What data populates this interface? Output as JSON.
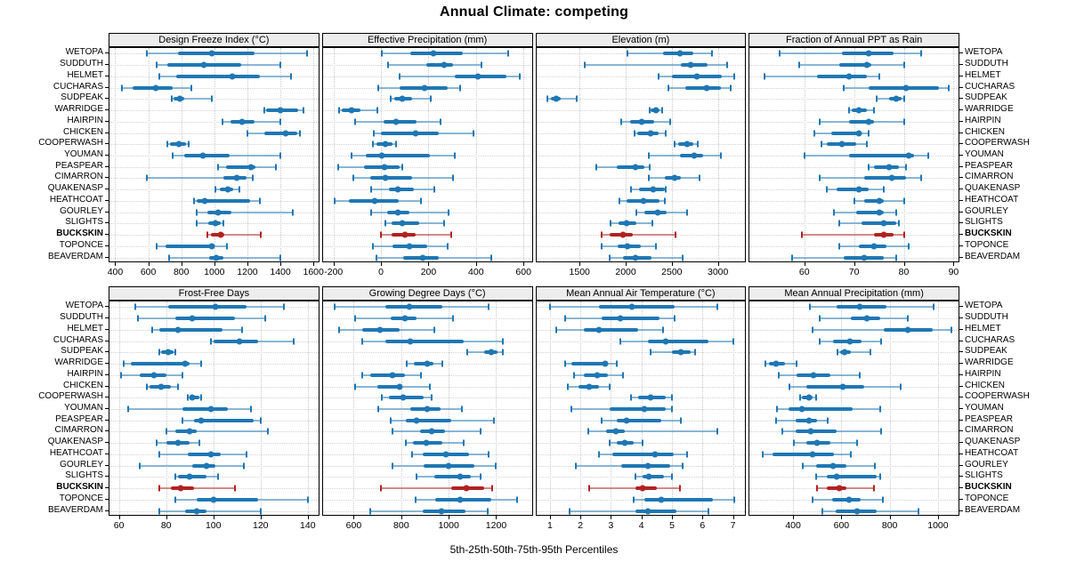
{
  "title": "Annual Climate: competing",
  "subtitle": "5th-25th-50th-75th-95th Percentiles",
  "highlight_station": "BUCKSKIN",
  "colors": {
    "series": "#1f77b4",
    "highlight": "#b22222",
    "strip_bg": "#ededed",
    "grid": "#c9c9c9",
    "border": "#000000"
  },
  "stations": [
    "WETOPA",
    "SUDDUTH",
    "HELMET",
    "CUCHARAS",
    "SUDPEAK",
    "WARRIDGE",
    "HAIRPIN",
    "CHICKEN",
    "COOPERWASH",
    "YOUMAN",
    "PEASPEAR",
    "CIMARRON",
    "QUAKENASP",
    "HEATHCOAT",
    "GOURLEY",
    "SLIGHTS",
    "BUCKSKIN",
    "TOPONCE",
    "BEAVERDAM"
  ],
  "percentile_labels": [
    "5th",
    "25th",
    "50th",
    "75th",
    "95th"
  ],
  "chart_data": {
    "type": "scatter",
    "subtype": "trellis-percentile-interval-dotplot",
    "layout": {
      "rows": 2,
      "cols": 4
    },
    "grid": true,
    "panels": [
      {
        "title": "Design Freeze Index (°C)",
        "xlim": [
          365,
          1630
        ],
        "ticks": [
          400,
          600,
          800,
          1000,
          1200,
          1400,
          1600
        ],
        "values": [
          [
            590,
            780,
            985,
            1245,
            1560
          ],
          [
            650,
            715,
            935,
            1160,
            1400
          ],
          [
            665,
            770,
            1110,
            1275,
            1465
          ],
          [
            440,
            505,
            645,
            745,
            860
          ],
          [
            740,
            755,
            790,
            820,
            985
          ],
          [
            1300,
            1315,
            1400,
            1510,
            1540
          ],
          [
            1050,
            1100,
            1170,
            1245,
            1400
          ],
          [
            1200,
            1305,
            1430,
            1500,
            1520
          ],
          [
            715,
            730,
            785,
            830,
            845
          ],
          [
            750,
            820,
            930,
            1090,
            1400
          ],
          [
            1025,
            1070,
            1220,
            1250,
            1370
          ],
          [
            590,
            1055,
            1135,
            1195,
            1230
          ],
          [
            1005,
            1035,
            1080,
            1115,
            1150
          ],
          [
            875,
            895,
            940,
            1215,
            1275
          ],
          [
            895,
            960,
            1020,
            1105,
            1475
          ],
          [
            895,
            965,
            1005,
            1040,
            1055
          ],
          [
            960,
            980,
            1040,
            1060,
            1280
          ],
          [
            650,
            705,
            985,
            1000,
            1075
          ],
          [
            725,
            970,
            1010,
            1055,
            1400
          ]
        ]
      },
      {
        "title": "Effective Precipitation (mm)",
        "xlim": [
          -245,
          635
        ],
        "ticks": [
          -200,
          0,
          200,
          400,
          600
        ],
        "values": [
          [
            5,
            125,
            220,
            345,
            535
          ],
          [
            30,
            190,
            265,
            305,
            425
          ],
          [
            80,
            310,
            410,
            530,
            585
          ],
          [
            -10,
            80,
            185,
            280,
            335
          ],
          [
            40,
            55,
            90,
            130,
            210
          ],
          [
            -175,
            -165,
            -125,
            -85,
            -15
          ],
          [
            -110,
            10,
            65,
            150,
            250
          ],
          [
            -30,
            0,
            145,
            245,
            390
          ],
          [
            -35,
            -18,
            18,
            48,
            65
          ],
          [
            -125,
            -65,
            5,
            205,
            310
          ],
          [
            -180,
            -70,
            15,
            80,
            90
          ],
          [
            -115,
            -45,
            20,
            130,
            305
          ],
          [
            -40,
            35,
            70,
            140,
            225
          ],
          [
            -195,
            -135,
            -25,
            75,
            170
          ],
          [
            -40,
            25,
            70,
            120,
            285
          ],
          [
            20,
            45,
            90,
            160,
            265
          ],
          [
            0,
            45,
            100,
            145,
            295
          ],
          [
            -35,
            50,
            120,
            195,
            280
          ],
          [
            -20,
            95,
            175,
            245,
            465
          ]
        ]
      },
      {
        "title": "Elevation (m)",
        "xlim": [
          1030,
          3295
        ],
        "ticks": [
          1500,
          2000,
          2500,
          3000
        ],
        "values": [
          [
            2015,
            2405,
            2585,
            2730,
            2940
          ],
          [
            1555,
            2600,
            2705,
            2890,
            3095
          ],
          [
            2355,
            2505,
            2770,
            3045,
            3180
          ],
          [
            2460,
            2650,
            2880,
            3030,
            3140
          ],
          [
            1155,
            1185,
            1245,
            1300,
            1470
          ],
          [
            2260,
            2270,
            2325,
            2370,
            2395
          ],
          [
            1950,
            2045,
            2170,
            2305,
            2485
          ],
          [
            2095,
            2125,
            2270,
            2360,
            2435
          ],
          [
            2530,
            2570,
            2665,
            2730,
            2785
          ],
          [
            2255,
            2585,
            2740,
            2835,
            3030
          ],
          [
            1680,
            1905,
            2105,
            2200,
            2265
          ],
          [
            2255,
            2420,
            2530,
            2600,
            2800
          ],
          [
            2055,
            2140,
            2295,
            2420,
            2435
          ],
          [
            1935,
            2010,
            2190,
            2370,
            2420
          ],
          [
            2115,
            2200,
            2350,
            2445,
            2665
          ],
          [
            1840,
            1925,
            2010,
            2115,
            2285
          ],
          [
            1735,
            1830,
            1970,
            2080,
            2540
          ],
          [
            1735,
            1915,
            2020,
            2160,
            2325
          ],
          [
            1830,
            1970,
            2105,
            2275,
            2620
          ]
        ]
      },
      {
        "title": "Fraction of Annual PPT as Rain",
        "xlim": [
          49,
          91
        ],
        "ticks": [
          60,
          70,
          80,
          90
        ],
        "values": [
          [
            55,
            67.5,
            73,
            78,
            83.5
          ],
          [
            59,
            67,
            72.5,
            73.5,
            80
          ],
          [
            52,
            62.5,
            69,
            72.5,
            75
          ],
          [
            68,
            73,
            80.5,
            87,
            89
          ],
          [
            74.5,
            77,
            78.5,
            79.5,
            80
          ],
          [
            69,
            69.5,
            71,
            72.5,
            74
          ],
          [
            63,
            69,
            73,
            74,
            80
          ],
          [
            62,
            65.5,
            71,
            71.5,
            73
          ],
          [
            63.5,
            64.5,
            67.5,
            70.5,
            72.5
          ],
          [
            60,
            69,
            81,
            82,
            85
          ],
          [
            73,
            74,
            77,
            79,
            80.5
          ],
          [
            63,
            72,
            77.5,
            80.5,
            83.5
          ],
          [
            64.5,
            66.5,
            71,
            73,
            76
          ],
          [
            70,
            72,
            75,
            76,
            80
          ],
          [
            66,
            70.5,
            75,
            76,
            78.5
          ],
          [
            67,
            71.5,
            76,
            78.5,
            79
          ],
          [
            59.5,
            74,
            76,
            78,
            80
          ],
          [
            67,
            71,
            74,
            76.5,
            81
          ],
          [
            57.5,
            68,
            72,
            76,
            78.5
          ]
        ]
      },
      {
        "title": "Frost-Free Days",
        "xlim": [
          56,
          144.5
        ],
        "ticks": [
          60,
          80,
          100,
          120,
          140
        ],
        "values": [
          [
            67,
            81,
            101,
            114,
            130
          ],
          [
            68,
            84,
            91,
            109,
            122
          ],
          [
            74,
            77,
            85,
            104,
            112
          ],
          [
            99,
            100,
            111,
            119,
            134
          ],
          [
            77,
            78,
            81,
            83,
            84
          ],
          [
            62,
            65,
            88,
            90,
            95
          ],
          [
            61,
            69,
            75,
            80,
            87
          ],
          [
            72,
            73,
            78,
            82,
            85
          ],
          [
            89,
            90,
            91,
            94,
            95
          ],
          [
            64,
            87,
            99,
            106,
            116
          ],
          [
            87,
            92,
            95,
            117,
            120
          ],
          [
            80,
            84,
            90,
            93,
            123
          ],
          [
            76,
            80,
            85,
            90,
            94
          ],
          [
            77,
            89,
            99,
            103,
            114
          ],
          [
            69,
            91,
            97,
            101,
            113
          ],
          [
            84,
            85,
            90,
            97,
            102
          ],
          [
            77,
            82,
            86,
            92,
            109
          ],
          [
            84,
            93,
            100,
            119,
            140
          ],
          [
            77,
            88,
            93,
            97,
            120
          ]
        ]
      },
      {
        "title": "Growing Degree Days (°C)",
        "xlim": [
          470,
          1350
        ],
        "ticks": [
          600,
          800,
          1000,
          1200
        ],
        "values": [
          [
            520,
            735,
            835,
            975,
            1170
          ],
          [
            605,
            755,
            815,
            865,
            1020
          ],
          [
            540,
            635,
            710,
            795,
            940
          ],
          [
            635,
            735,
            840,
            1065,
            1230
          ],
          [
            1080,
            1150,
            1180,
            1205,
            1230
          ],
          [
            825,
            855,
            910,
            935,
            975
          ],
          [
            635,
            670,
            765,
            815,
            885
          ],
          [
            605,
            700,
            795,
            800,
            920
          ],
          [
            720,
            750,
            810,
            895,
            930
          ],
          [
            705,
            840,
            910,
            965,
            1055
          ],
          [
            755,
            820,
            865,
            1010,
            1190
          ],
          [
            765,
            880,
            930,
            985,
            1135
          ],
          [
            820,
            850,
            905,
            975,
            1065
          ],
          [
            845,
            890,
            990,
            1085,
            1170
          ],
          [
            765,
            895,
            1000,
            1110,
            1200
          ],
          [
            865,
            940,
            1050,
            1095,
            1135
          ],
          [
            715,
            1010,
            1075,
            1150,
            1185
          ],
          [
            860,
            945,
            1050,
            1180,
            1290
          ],
          [
            670,
            890,
            970,
            1070,
            1165
          ]
        ]
      },
      {
        "title": "Mean Annual Air Temperature (°C)",
        "xlim": [
          0.55,
          7.4
        ],
        "ticks": [
          1,
          2,
          3,
          4,
          5,
          6,
          7
        ],
        "values": [
          [
            1.0,
            2.6,
            3.7,
            5.1,
            6.5
          ],
          [
            1.5,
            2.7,
            3.3,
            4.6,
            5.1
          ],
          [
            1.2,
            2.1,
            2.6,
            3.9,
            4.7
          ],
          [
            3.3,
            4.2,
            4.8,
            6.2,
            7.0
          ],
          [
            4.3,
            5.0,
            5.3,
            5.6,
            5.75
          ],
          [
            1.5,
            1.7,
            2.8,
            2.85,
            3.2
          ],
          [
            1.8,
            2.1,
            2.55,
            2.9,
            3.4
          ],
          [
            1.6,
            1.95,
            2.3,
            2.6,
            2.95
          ],
          [
            3.65,
            3.9,
            4.3,
            4.8,
            5.0
          ],
          [
            1.7,
            2.95,
            4.1,
            4.8,
            5.0
          ],
          [
            2.7,
            3.2,
            3.5,
            4.65,
            5.3
          ],
          [
            2.25,
            2.85,
            3.15,
            3.45,
            6.5
          ],
          [
            2.95,
            3.2,
            3.45,
            3.75,
            4.05
          ],
          [
            2.6,
            3.05,
            4.45,
            5.05,
            5.5
          ],
          [
            1.85,
            3.35,
            4.2,
            4.95,
            5.35
          ],
          [
            3.8,
            4.05,
            4.25,
            4.75,
            5.0
          ],
          [
            2.3,
            3.8,
            4.05,
            4.5,
            5.25
          ],
          [
            3.75,
            4.1,
            4.65,
            6.35,
            7.05
          ],
          [
            1.65,
            3.8,
            4.2,
            5.15,
            6.2
          ]
        ]
      },
      {
        "title": "Mean Annual Precipitation (mm)",
        "xlim": [
          220,
          1085
        ],
        "ticks": [
          400,
          600,
          800,
          1000
        ],
        "values": [
          [
            470,
            580,
            675,
            785,
            980
          ],
          [
            510,
            640,
            705,
            760,
            875
          ],
          [
            480,
            775,
            875,
            980,
            1055
          ],
          [
            510,
            565,
            635,
            685,
            765
          ],
          [
            585,
            595,
            615,
            640,
            720
          ],
          [
            285,
            300,
            330,
            365,
            415
          ],
          [
            340,
            415,
            485,
            555,
            675
          ],
          [
            385,
            455,
            605,
            695,
            845
          ],
          [
            430,
            435,
            465,
            480,
            495
          ],
          [
            335,
            380,
            435,
            645,
            760
          ],
          [
            330,
            410,
            465,
            500,
            545
          ],
          [
            355,
            410,
            475,
            580,
            765
          ],
          [
            405,
            455,
            500,
            555,
            665
          ],
          [
            275,
            315,
            480,
            570,
            640
          ],
          [
            440,
            495,
            565,
            620,
            740
          ],
          [
            495,
            540,
            580,
            745,
            760
          ],
          [
            500,
            540,
            590,
            620,
            735
          ],
          [
            480,
            560,
            630,
            680,
            770
          ],
          [
            520,
            575,
            665,
            745,
            920
          ]
        ]
      }
    ]
  }
}
